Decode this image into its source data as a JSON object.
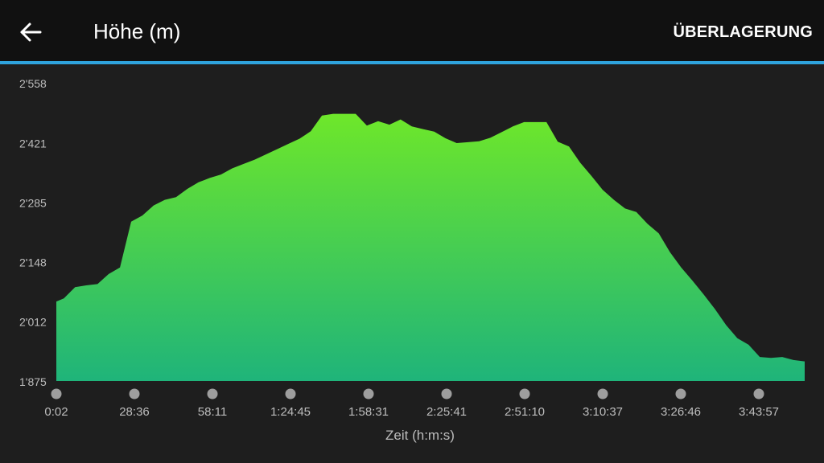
{
  "header": {
    "back_icon": "arrow-left-icon",
    "title": "Höhe (m)",
    "overlay_label": "ÜBERLAGERUNG"
  },
  "colors": {
    "header_bg": "#111111",
    "accent": "#2fa3dd",
    "background": "#1e1e1e",
    "fill_top": "#6ee72a",
    "fill_bottom": "#1fb47a",
    "tick_label": "#bdbdbd",
    "scrub_dot": "#9e9e9e"
  },
  "chart_data": {
    "type": "area",
    "title": "",
    "xlabel": "Zeit (h:m:s)",
    "ylabel": "",
    "y_tick_labels": [
      "2'558",
      "2'421",
      "2'285",
      "2'148",
      "2'012",
      "1'875"
    ],
    "y_ticks": [
      2558,
      2421,
      2285,
      2148,
      2012,
      1875
    ],
    "ylim": [
      1875,
      2558
    ],
    "x_tick_labels": [
      "0:02",
      "28:36",
      "58:11",
      "1:24:45",
      "1:58:31",
      "2:25:41",
      "2:51:10",
      "3:10:37",
      "3:26:46",
      "3:43:57"
    ],
    "grid": false,
    "legend": "none",
    "series": [
      {
        "x": [
          0,
          2,
          5,
          8,
          11,
          14,
          17,
          20,
          23,
          26,
          29,
          32,
          35,
          38,
          41,
          44,
          47,
          50,
          53,
          56,
          59,
          62,
          65,
          68,
          71,
          74,
          77,
          80,
          83,
          86,
          89,
          92,
          95,
          98,
          101,
          104,
          107,
          110,
          113,
          116,
          119,
          122,
          125,
          128,
          131,
          134,
          137,
          140,
          143,
          146,
          149,
          152,
          155,
          158,
          161,
          164,
          167,
          170,
          173,
          176,
          179,
          182,
          185,
          188,
          191,
          194,
          197,
          200
        ],
        "y": [
          2057,
          2064,
          2090,
          2094,
          2097,
          2120,
          2135,
          2240,
          2254,
          2277,
          2290,
          2296,
          2315,
          2330,
          2340,
          2348,
          2362,
          2372,
          2382,
          2394,
          2406,
          2418,
          2430,
          2447,
          2483,
          2487,
          2487,
          2487,
          2460,
          2470,
          2462,
          2474,
          2458,
          2452,
          2446,
          2431,
          2420,
          2422,
          2424,
          2432,
          2445,
          2458,
          2468,
          2468,
          2468,
          2423,
          2412,
          2375,
          2345,
          2313,
          2290,
          2270,
          2262,
          2235,
          2213,
          2170,
          2135,
          2105,
          2073,
          2040,
          2003,
          1973,
          1958,
          1930,
          1928,
          1930,
          1923,
          1920
        ]
      }
    ]
  }
}
